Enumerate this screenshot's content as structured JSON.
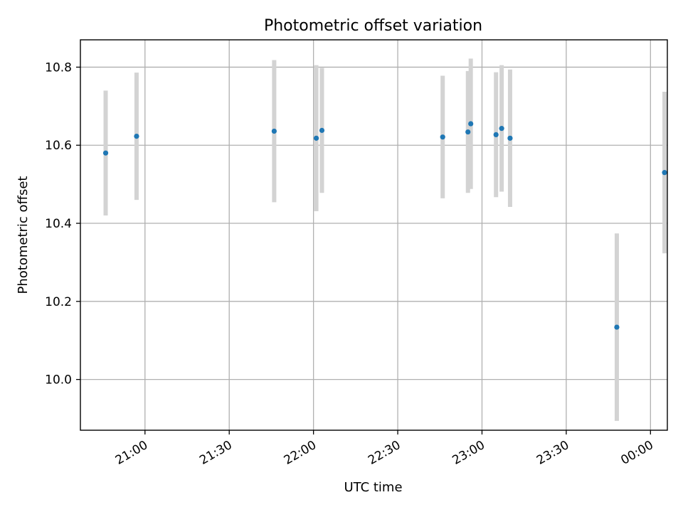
{
  "chart_data": {
    "type": "scatter",
    "title": "Photometric offset variation",
    "xlabel": "UTC time",
    "ylabel": "Photometric offset",
    "x_axis_kind": "time",
    "xlim": [
      "20:37",
      "00:06"
    ],
    "ylim": [
      9.87,
      10.87
    ],
    "x_ticks": [
      {
        "time": "21:00",
        "label": "21:00"
      },
      {
        "time": "21:30",
        "label": "21:30"
      },
      {
        "time": "22:00",
        "label": "22:00"
      },
      {
        "time": "22:30",
        "label": "22:30"
      },
      {
        "time": "23:00",
        "label": "23:00"
      },
      {
        "time": "23:30",
        "label": "23:30"
      },
      {
        "time": "00:00",
        "label": "00:00"
      }
    ],
    "y_ticks": [
      {
        "value": 10.0,
        "label": "10.0"
      },
      {
        "value": 10.2,
        "label": "10.2"
      },
      {
        "value": 10.4,
        "label": "10.4"
      },
      {
        "value": 10.6,
        "label": "10.6"
      },
      {
        "value": 10.8,
        "label": "10.8"
      }
    ],
    "grid": true,
    "marker_color": "#1f77b4",
    "errorbar_color": "#d3d3d3",
    "points": [
      {
        "time": "20:46",
        "y": 10.58,
        "err": 0.16
      },
      {
        "time": "20:57",
        "y": 10.623,
        "err": 0.163
      },
      {
        "time": "21:46",
        "y": 10.636,
        "err": 0.182
      },
      {
        "time": "22:01",
        "y": 10.618,
        "err": 0.187
      },
      {
        "time": "22:03",
        "y": 10.638,
        "err": 0.16
      },
      {
        "time": "22:46",
        "y": 10.621,
        "err": 0.157
      },
      {
        "time": "22:55",
        "y": 10.634,
        "err": 0.156
      },
      {
        "time": "22:56",
        "y": 10.655,
        "err": 0.167
      },
      {
        "time": "23:05",
        "y": 10.627,
        "err": 0.16
      },
      {
        "time": "23:07",
        "y": 10.643,
        "err": 0.162
      },
      {
        "time": "23:10",
        "y": 10.618,
        "err": 0.176
      },
      {
        "time": "23:48",
        "y": 10.134,
        "err": 0.24
      },
      {
        "time": "00:05",
        "y": 10.53,
        "err": 0.207
      }
    ]
  }
}
